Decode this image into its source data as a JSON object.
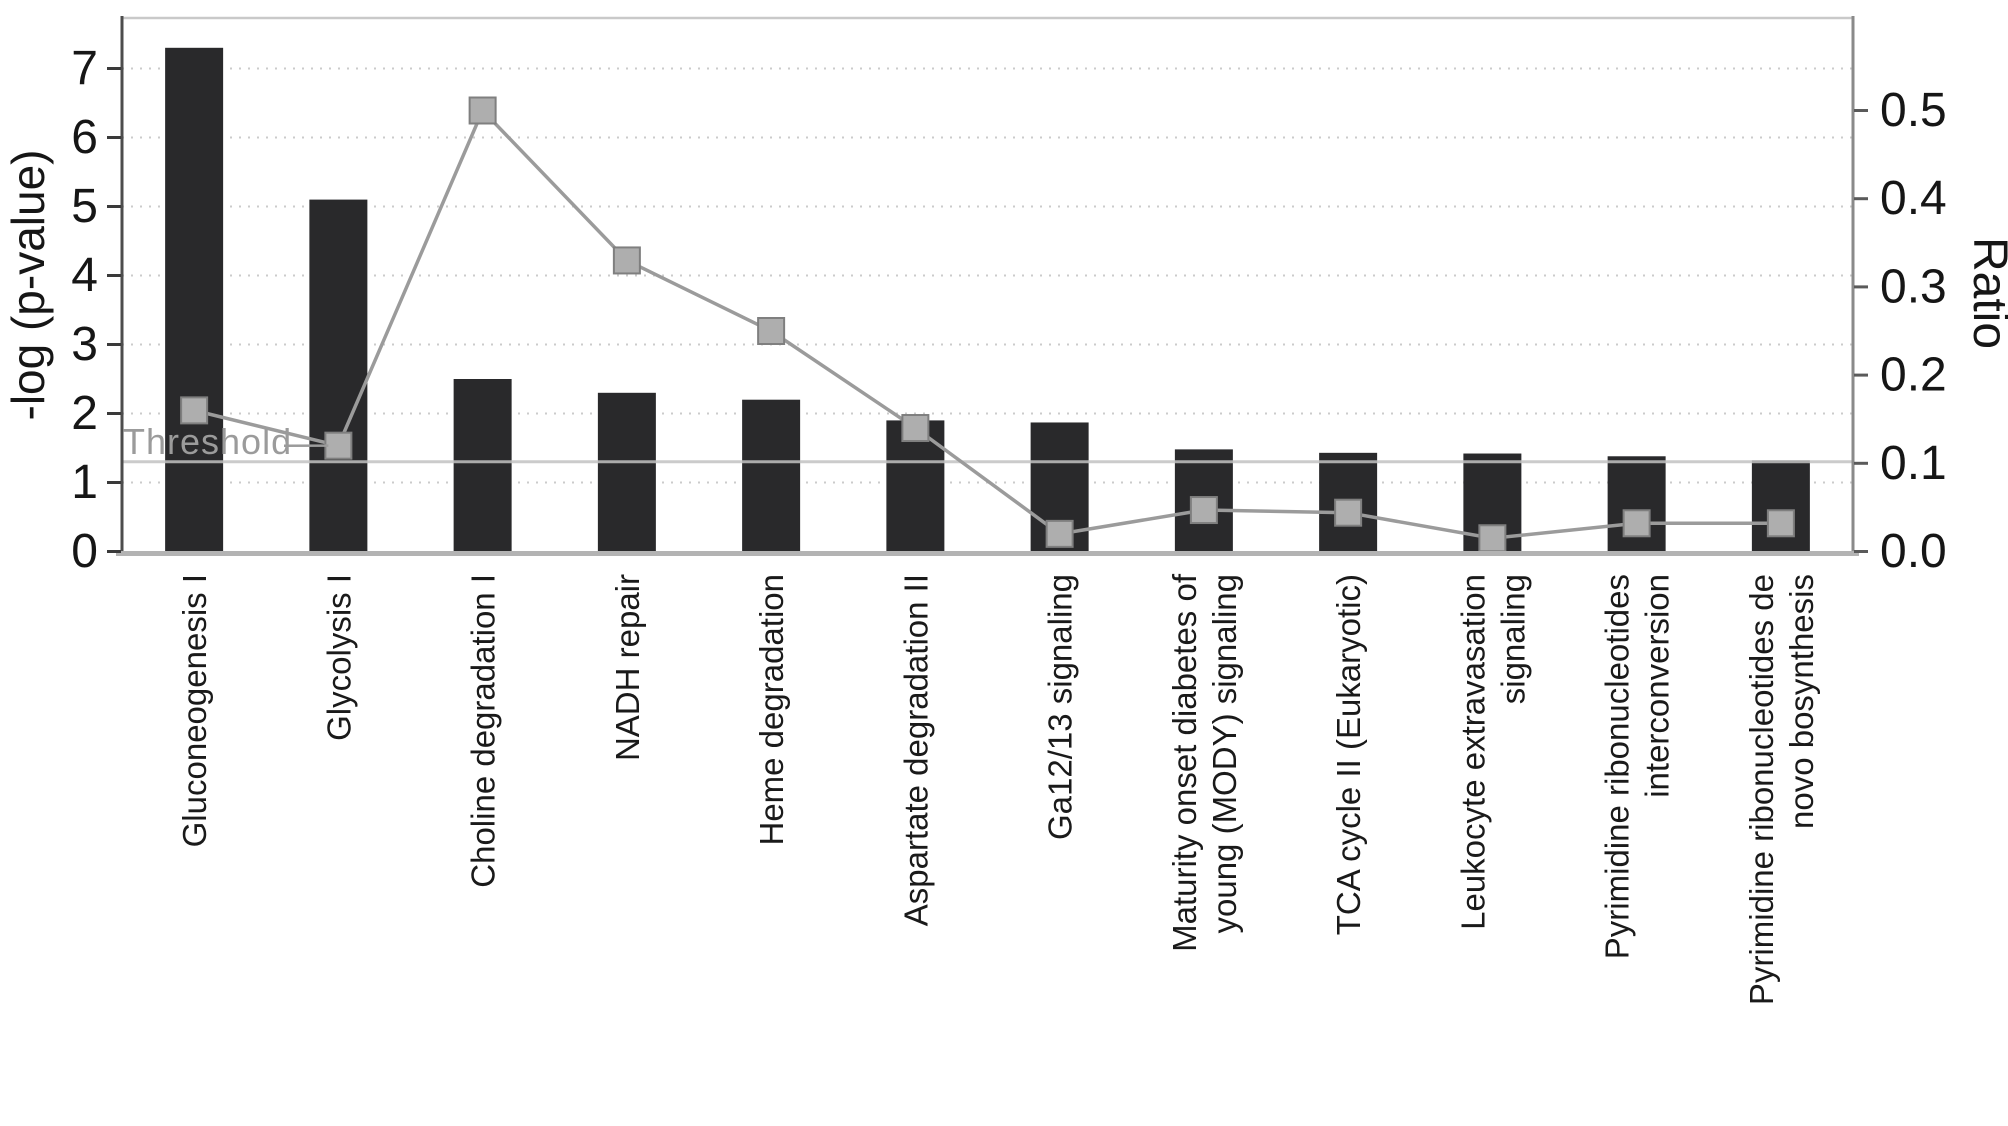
{
  "figure": {
    "kind": "scanned pathway-analysis bar/line figure",
    "background": "#ffffff"
  },
  "chart_data": {
    "type": "bar",
    "subtype": "bar-with-line-overlay-dual-y-axis",
    "title": "",
    "categories": [
      "Gluconeogenesis I",
      "Glycolysis I",
      "Choline degradation I",
      "NADH repair",
      "Heme degradation",
      "Aspartate degradation II",
      "Ga12/13 signaling",
      "Maturity onset diabetes of young (MODY) signaling",
      "TCA cycle II (Eukaryotic)",
      "Leukocyte extravasation signaling",
      "Pyrimidine ribonucleotides interconversion",
      "Pyrimidine ribonucleotides de novo bosynthesis"
    ],
    "category_label_lines": [
      [
        "Gluconeogenesis I"
      ],
      [
        "Glycolysis I"
      ],
      [
        "Choline degradation I"
      ],
      [
        "NADH repair"
      ],
      [
        "Heme degradation"
      ],
      [
        "Aspartate degradation II"
      ],
      [
        "Ga12/13 signaling"
      ],
      [
        "Maturity onset diabetes of",
        "young (MODY) signaling"
      ],
      [
        "TCA cycle II (Eukaryotic)"
      ],
      [
        "Leukocyte extravasation",
        "signaling"
      ],
      [
        "Pyrimidine ribonucleotides",
        "interconversion"
      ],
      [
        "Pyrimidine ribonucleotides de",
        "novo bosynthesis"
      ]
    ],
    "series": [
      {
        "name": "-log (p-value)",
        "type": "bar",
        "axis": "left",
        "color": "#29292b",
        "values": [
          7.3,
          5.1,
          2.5,
          2.3,
          2.2,
          1.9,
          1.87,
          1.48,
          1.43,
          1.42,
          1.38,
          1.32
        ]
      },
      {
        "name": "Ratio",
        "type": "line",
        "axis": "right",
        "color": "#9b9b9b",
        "marker": "square",
        "marker_fill": "#aeaeae",
        "marker_stroke": "#7f7f7f",
        "values": [
          0.16,
          0.12,
          0.5,
          0.33,
          0.25,
          0.14,
          0.02,
          0.047,
          0.044,
          0.015,
          0.032,
          0.032
        ]
      }
    ],
    "left_axis": {
      "label": "-log (p-value)",
      "ticks": [
        0,
        1,
        2,
        3,
        4,
        5,
        6,
        7
      ],
      "range": [
        0,
        7.73
      ]
    },
    "right_axis": {
      "label": "Ratio",
      "ticks": [
        "0.0",
        "0.1",
        "0.2",
        "0.3",
        "0.4",
        "0.5"
      ],
      "range": [
        0,
        0.605
      ]
    },
    "threshold": {
      "label": "Threshold",
      "value_left_axis": 1.3,
      "line_color": "#c2c2c2",
      "text_color": "#9b9b9b"
    },
    "grid": {
      "horizontal_dotted_at": [
        1,
        2,
        3,
        4,
        5,
        6,
        7
      ],
      "dotted_color": "#cbcbcb"
    },
    "legend_position": "none",
    "colors": {
      "bar": "#29292b",
      "line": "#9b9b9b",
      "marker": "#aeaeae",
      "axis_text": "#161616",
      "left_spine": "#4d4d4d",
      "right_spine": "#8a8a8a",
      "top_border": "#c9c9c9",
      "bottom_axis": "#b3b3b3"
    }
  }
}
